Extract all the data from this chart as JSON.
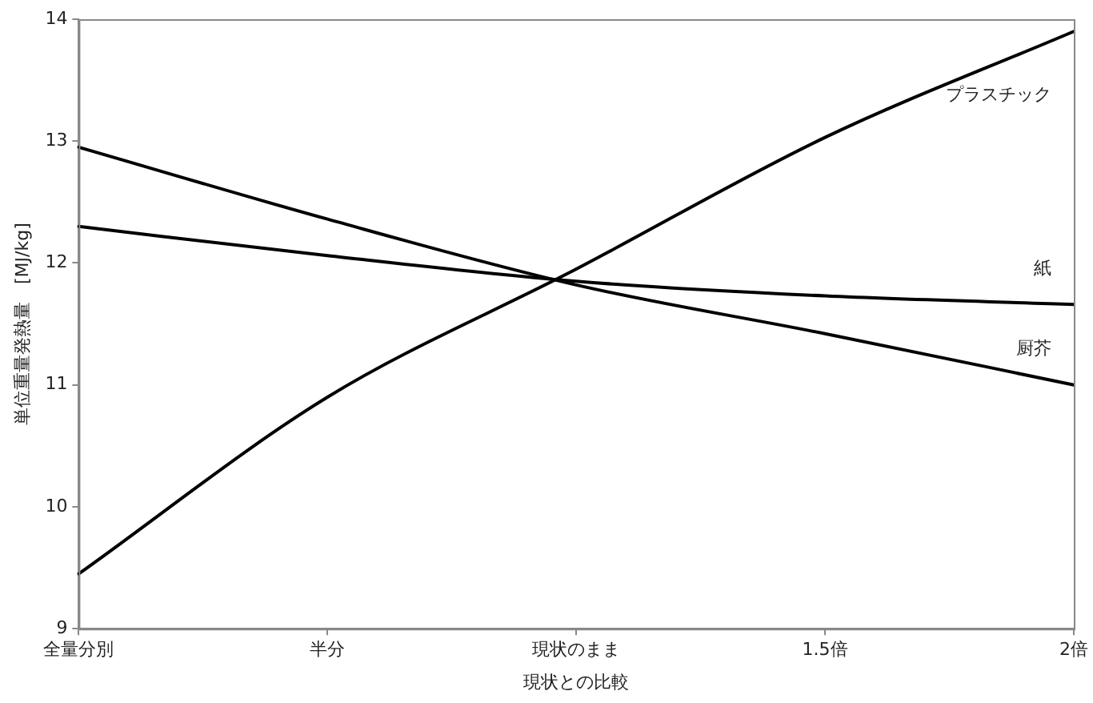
{
  "chart_data": {
    "type": "line",
    "xlabel": "現状との比較",
    "ylabel": "単位重量発熱量　[MJ/kg]",
    "categories": [
      "全量分別",
      "半分",
      "現状のまま",
      "1.5倍",
      "2倍"
    ],
    "ylim": [
      9,
      14
    ],
    "yticks": [
      9,
      10,
      11,
      12,
      13,
      14
    ],
    "grid": false,
    "legend": false,
    "marker": "none",
    "line_style": "solid",
    "series": [
      {
        "name": "プラスチック",
        "color": "#000000",
        "values": [
          9.45,
          10.9,
          11.95,
          13.03,
          13.9
        ]
      },
      {
        "name": "紙",
        "color": "#000000",
        "values": [
          12.3,
          12.06,
          11.85,
          11.73,
          11.66
        ]
      },
      {
        "name": "厨芥",
        "color": "#000000",
        "values": [
          12.95,
          12.36,
          11.82,
          11.42,
          11.0
        ]
      }
    ]
  }
}
